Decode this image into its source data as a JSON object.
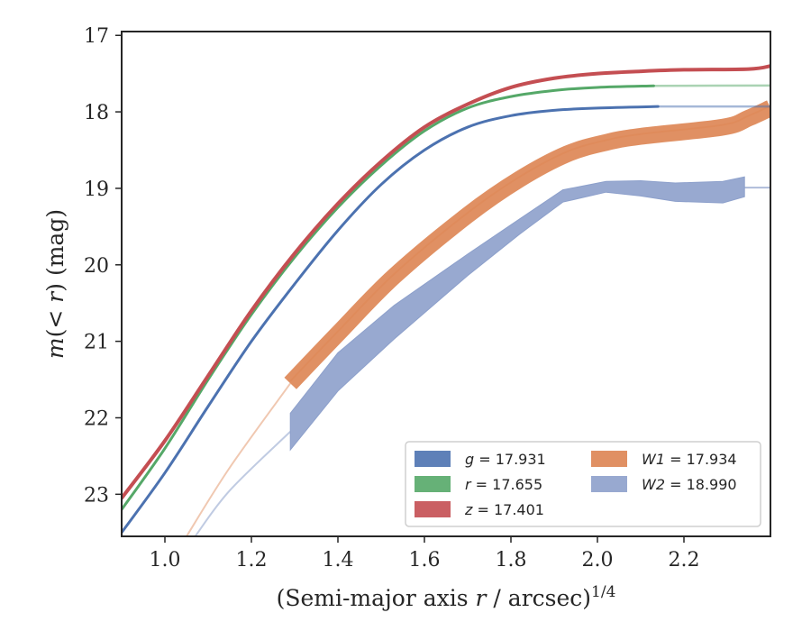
{
  "chart_data": {
    "type": "line",
    "xlabel": "(Semi-major axis r / arcsec)1/4",
    "ylabel": "m(< r) (mag)",
    "xlim": [
      0.9,
      2.4
    ],
    "ylim": [
      23.55,
      16.95
    ],
    "y_inverted": true,
    "grid": false,
    "x_ticks": [
      "1.0",
      "1.2",
      "1.4",
      "1.6",
      "1.8",
      "2.0",
      "2.2"
    ],
    "y_ticks": [
      "17",
      "18",
      "19",
      "20",
      "21",
      "22",
      "23"
    ],
    "legend_position": "lower-right",
    "legend": [
      {
        "var": "g",
        "text": " = 17.931"
      },
      {
        "var": "r",
        "text": " = 17.655"
      },
      {
        "var": "z",
        "text": " = 17.401"
      },
      {
        "var": "W1",
        "text": " = 17.934"
      },
      {
        "var": "W2",
        "text": " = 18.990"
      }
    ],
    "series": [
      {
        "color": "#4c72b0",
        "width": 3.0,
        "limit_x": 2.14,
        "x": [
          0.9,
          1.0,
          1.1,
          1.2,
          1.3,
          1.4,
          1.5,
          1.6,
          1.7,
          1.8,
          1.9,
          2.0,
          2.14,
          2.4
        ],
        "y": [
          23.5,
          22.72,
          21.85,
          21.0,
          20.25,
          19.55,
          18.95,
          18.5,
          18.2,
          18.05,
          17.98,
          17.95,
          17.93,
          17.93
        ]
      },
      {
        "color": "#55a868",
        "width": 3.0,
        "limit_x": 2.13,
        "x": [
          0.9,
          1.0,
          1.1,
          1.2,
          1.3,
          1.4,
          1.5,
          1.6,
          1.7,
          1.8,
          1.9,
          2.0,
          2.13,
          2.4
        ],
        "y": [
          23.2,
          22.4,
          21.5,
          20.65,
          19.9,
          19.25,
          18.7,
          18.25,
          17.95,
          17.8,
          17.72,
          17.68,
          17.66,
          17.655
        ]
      },
      {
        "color": "#c44e52",
        "width": 4.0,
        "limit_x": 2.4,
        "x": [
          0.9,
          1.0,
          1.1,
          1.2,
          1.3,
          1.4,
          1.5,
          1.6,
          1.7,
          1.8,
          1.9,
          2.0,
          2.1,
          2.2,
          2.35,
          2.4
        ],
        "y": [
          23.05,
          22.3,
          21.45,
          20.6,
          19.85,
          19.2,
          18.65,
          18.2,
          17.9,
          17.68,
          17.56,
          17.5,
          17.47,
          17.45,
          17.44,
          17.4
        ]
      },
      {
        "color": "#dd8452",
        "band_width": 0.22,
        "limit_x": 1.29,
        "x": [
          1.05,
          1.15,
          1.29,
          1.4,
          1.53,
          1.7,
          1.82,
          1.93,
          2.02,
          2.1,
          2.29,
          2.35,
          2.4
        ],
        "y": [
          23.55,
          22.65,
          21.55,
          20.9,
          20.15,
          19.35,
          18.88,
          18.55,
          18.4,
          18.32,
          18.2,
          18.08,
          17.95
        ]
      },
      {
        "color": "#8da0cb",
        "limit_x": 1.29,
        "x": [
          1.07,
          1.15,
          1.29,
          1.4,
          1.53,
          1.7,
          1.82,
          1.92,
          2.02,
          2.1,
          2.18,
          2.29,
          2.34
        ],
        "y": [
          23.55,
          22.95,
          22.18,
          21.4,
          20.75,
          20.0,
          19.5,
          19.1,
          18.98,
          19.0,
          19.05,
          19.05,
          18.98
        ],
        "band_half": [
          0.05,
          0.08,
          0.24,
          0.25,
          0.22,
          0.14,
          0.1,
          0.08,
          0.07,
          0.1,
          0.12,
          0.14,
          0.13
        ]
      }
    ],
    "constant_tail": {
      "color": "#8da0cb",
      "x": [
        2.34,
        2.4
      ],
      "y": 18.99
    }
  }
}
